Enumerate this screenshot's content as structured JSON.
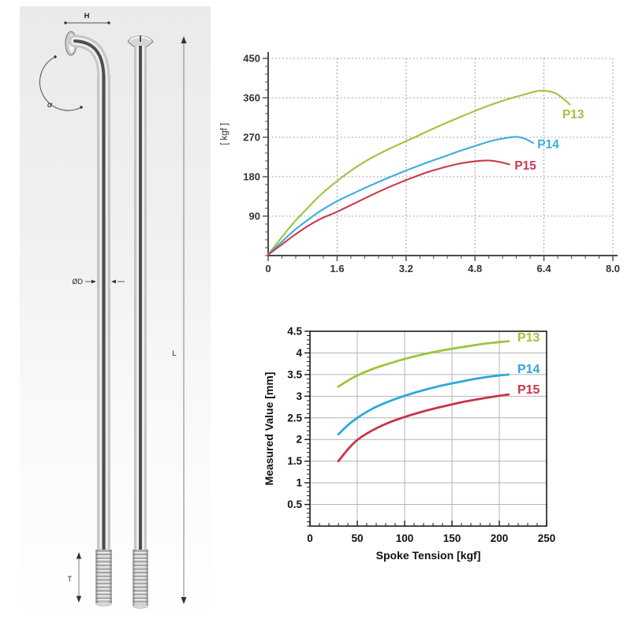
{
  "page": {
    "background": "#ffffff"
  },
  "diagram": {
    "panel_background": "#ecedec",
    "labels": {
      "head_width": "H",
      "bend_angle": "α",
      "diameter": "ØD",
      "length": "L",
      "thread_length": "T"
    }
  },
  "chart_data": [
    {
      "id": "top",
      "type": "line",
      "title": "",
      "xlabel": "",
      "ylabel": "[ kgf ]",
      "xlim": [
        0,
        8
      ],
      "ylim": [
        0,
        450
      ],
      "x_tick_values": [
        0,
        1.6,
        3.2,
        4.8,
        6.4,
        8.0
      ],
      "x_tick_labels": [
        "0",
        "1.6",
        "3.2",
        "4.8",
        "6.4",
        "8.0"
      ],
      "y_tick_values": [
        90,
        180,
        270,
        360,
        450
      ],
      "y_tick_labels": [
        "90",
        "180",
        "270",
        "360",
        "450"
      ],
      "x_minor_step": 0.32,
      "y_minor_step": 18,
      "grid": "dotted",
      "frame": "axes",
      "legend": "inline-labels",
      "series": [
        {
          "name": "P13",
          "color": "#9ec43f",
          "label_xy": [
            7.08,
            313
          ],
          "points": [
            [
              0,
              2
            ],
            [
              0.3,
              40
            ],
            [
              0.6,
              76
            ],
            [
              0.9,
              107
            ],
            [
              1.2,
              137
            ],
            [
              1.6,
              170
            ],
            [
              2.0,
              199
            ],
            [
              2.4,
              223
            ],
            [
              2.8,
              243
            ],
            [
              3.2,
              261
            ],
            [
              3.6,
              279
            ],
            [
              4.0,
              297
            ],
            [
              4.4,
              314
            ],
            [
              4.8,
              330
            ],
            [
              5.2,
              345
            ],
            [
              5.6,
              358
            ],
            [
              6.0,
              369
            ],
            [
              6.3,
              376
            ],
            [
              6.6,
              373
            ],
            [
              6.8,
              362
            ],
            [
              7.0,
              345
            ]
          ]
        },
        {
          "name": "P14",
          "color": "#3badde",
          "label_xy": [
            6.5,
            245
          ],
          "points": [
            [
              0,
              2
            ],
            [
              0.3,
              30
            ],
            [
              0.6,
              57
            ],
            [
              0.9,
              80
            ],
            [
              1.2,
              101
            ],
            [
              1.6,
              124
            ],
            [
              2.0,
              143
            ],
            [
              2.4,
              161
            ],
            [
              2.8,
              178
            ],
            [
              3.2,
              194
            ],
            [
              3.6,
              209
            ],
            [
              4.0,
              223
            ],
            [
              4.4,
              237
            ],
            [
              4.8,
              250
            ],
            [
              5.2,
              262
            ],
            [
              5.5,
              268
            ],
            [
              5.75,
              271
            ],
            [
              5.95,
              267
            ],
            [
              6.15,
              257
            ]
          ]
        },
        {
          "name": "P15",
          "color": "#cb3a4d",
          "label_xy": [
            5.97,
            196
          ],
          "points": [
            [
              0,
              2
            ],
            [
              0.3,
              24
            ],
            [
              0.6,
              46
            ],
            [
              0.9,
              66
            ],
            [
              1.2,
              83
            ],
            [
              1.6,
              100
            ],
            [
              2.0,
              119
            ],
            [
              2.4,
              138
            ],
            [
              2.8,
              156
            ],
            [
              3.2,
              172
            ],
            [
              3.6,
              187
            ],
            [
              4.0,
              199
            ],
            [
              4.4,
              209
            ],
            [
              4.8,
              215
            ],
            [
              5.1,
              217
            ],
            [
              5.35,
              214
            ],
            [
              5.6,
              208
            ]
          ]
        }
      ]
    },
    {
      "id": "bottom",
      "type": "line",
      "title": "",
      "xlabel": "Spoke Tension [kgf]",
      "ylabel": "Measured Value [mm]",
      "xlim": [
        0,
        250
      ],
      "ylim": [
        0,
        4.5
      ],
      "x_tick_values": [
        0,
        50,
        100,
        150,
        200,
        250
      ],
      "x_tick_labels": [
        "0",
        "50",
        "100",
        "150",
        "200",
        "250"
      ],
      "y_tick_values": [
        0.5,
        1,
        1.5,
        2,
        2.5,
        3,
        3.5,
        4,
        4.5
      ],
      "y_tick_labels": [
        "0.5",
        "1",
        "1.5",
        "2",
        "2.5",
        "3",
        "3.5",
        "4",
        "4.5"
      ],
      "x_minor_step": 10,
      "y_minor_step": 0.1,
      "grid": "solid",
      "frame": "box",
      "legend": "inline-labels",
      "series": [
        {
          "name": "P13",
          "color": "#9ec43f",
          "label_xy": [
            231,
            4.26
          ],
          "points": [
            [
              30,
              3.22
            ],
            [
              40,
              3.36
            ],
            [
              50,
              3.48
            ],
            [
              65,
              3.62
            ],
            [
              80,
              3.73
            ],
            [
              100,
              3.86
            ],
            [
              120,
              3.97
            ],
            [
              140,
              4.06
            ],
            [
              160,
              4.13
            ],
            [
              180,
              4.2
            ],
            [
              200,
              4.25
            ],
            [
              210,
              4.27
            ]
          ]
        },
        {
          "name": "P14",
          "color": "#2fa8d8",
          "label_xy": [
            231,
            3.53
          ],
          "points": [
            [
              30,
              2.12
            ],
            [
              40,
              2.33
            ],
            [
              50,
              2.5
            ],
            [
              65,
              2.7
            ],
            [
              80,
              2.85
            ],
            [
              100,
              3.01
            ],
            [
              120,
              3.14
            ],
            [
              140,
              3.25
            ],
            [
              160,
              3.34
            ],
            [
              180,
              3.42
            ],
            [
              200,
              3.48
            ],
            [
              210,
              3.5
            ]
          ]
        },
        {
          "name": "P15",
          "color": "#c7354a",
          "label_xy": [
            231,
            3.06
          ],
          "points": [
            [
              30,
              1.5
            ],
            [
              40,
              1.77
            ],
            [
              50,
              1.99
            ],
            [
              65,
              2.2
            ],
            [
              80,
              2.36
            ],
            [
              100,
              2.52
            ],
            [
              120,
              2.65
            ],
            [
              140,
              2.76
            ],
            [
              160,
              2.86
            ],
            [
              180,
              2.94
            ],
            [
              200,
              3.01
            ],
            [
              210,
              3.04
            ]
          ]
        }
      ]
    }
  ]
}
